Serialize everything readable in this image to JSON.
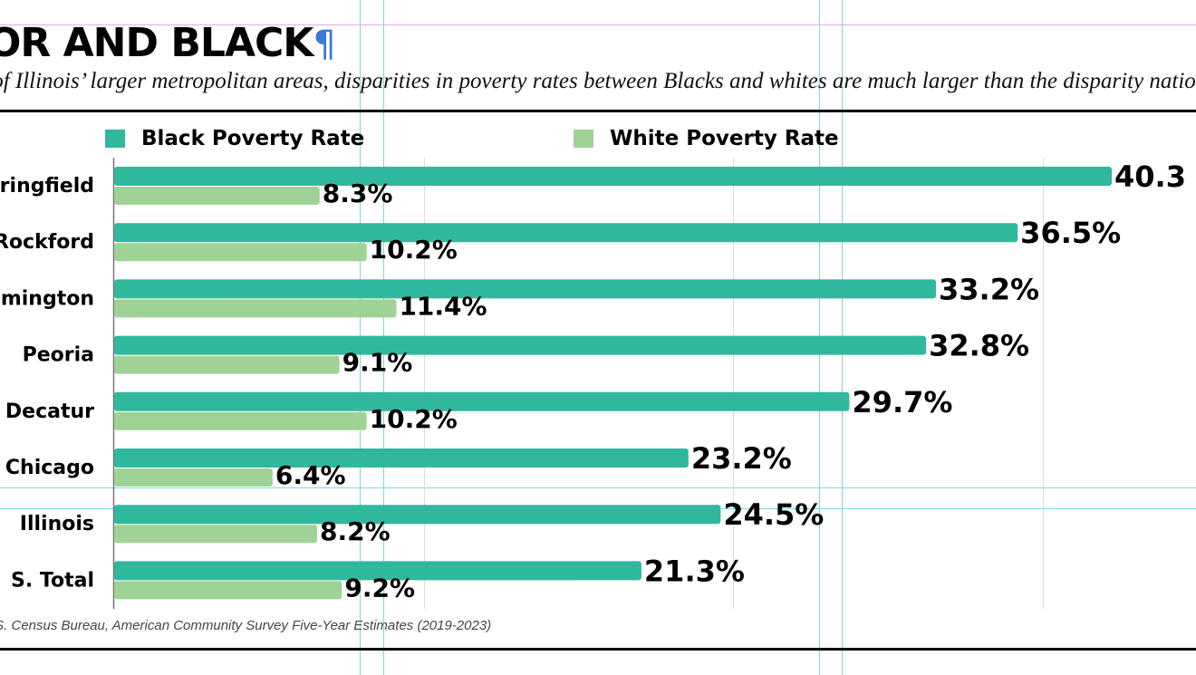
{
  "title": "OR AND BLACK",
  "pilcrow": "¶",
  "subtitle": "l of Illinois’ larger metropolitan areas, disparities in poverty rates between Blacks and whites are much larger than the disparity nationw",
  "source": ".S. Census Bureau, American Community Survey Five-Year Estimates (2019-2023)",
  "colors": {
    "black_series": "#30b89d",
    "white_series": "#9fd295",
    "gridline": "#dddddd",
    "axis": "#777777",
    "text": "#000000",
    "guide": "#7fd6e3"
  },
  "chart_data": {
    "type": "bar",
    "orientation": "horizontal",
    "categories": [
      "ringfield",
      "Rockford",
      "mington",
      "Peoria",
      "Decatur",
      "Chicago",
      "Illinois",
      "S. Total"
    ],
    "series": [
      {
        "name": "Black Poverty Rate",
        "values": [
          40.3,
          36.5,
          33.2,
          32.8,
          29.7,
          23.2,
          24.5,
          21.3
        ],
        "labels": [
          "40.3",
          "36.5%",
          "33.2%",
          "32.8%",
          "29.7%",
          "23.2%",
          "24.5%",
          "21.3%"
        ]
      },
      {
        "name": "White Poverty Rate",
        "values": [
          8.3,
          10.2,
          11.4,
          9.1,
          10.2,
          6.4,
          8.2,
          9.2
        ],
        "labels": [
          "8.3%",
          "10.2%",
          "11.4%",
          "9.1%",
          "10.2%",
          "6.4%",
          "8.2%",
          "9.2%"
        ]
      }
    ],
    "xlim": [
      0,
      48.2
    ],
    "grid": true,
    "legend_position": "top"
  }
}
